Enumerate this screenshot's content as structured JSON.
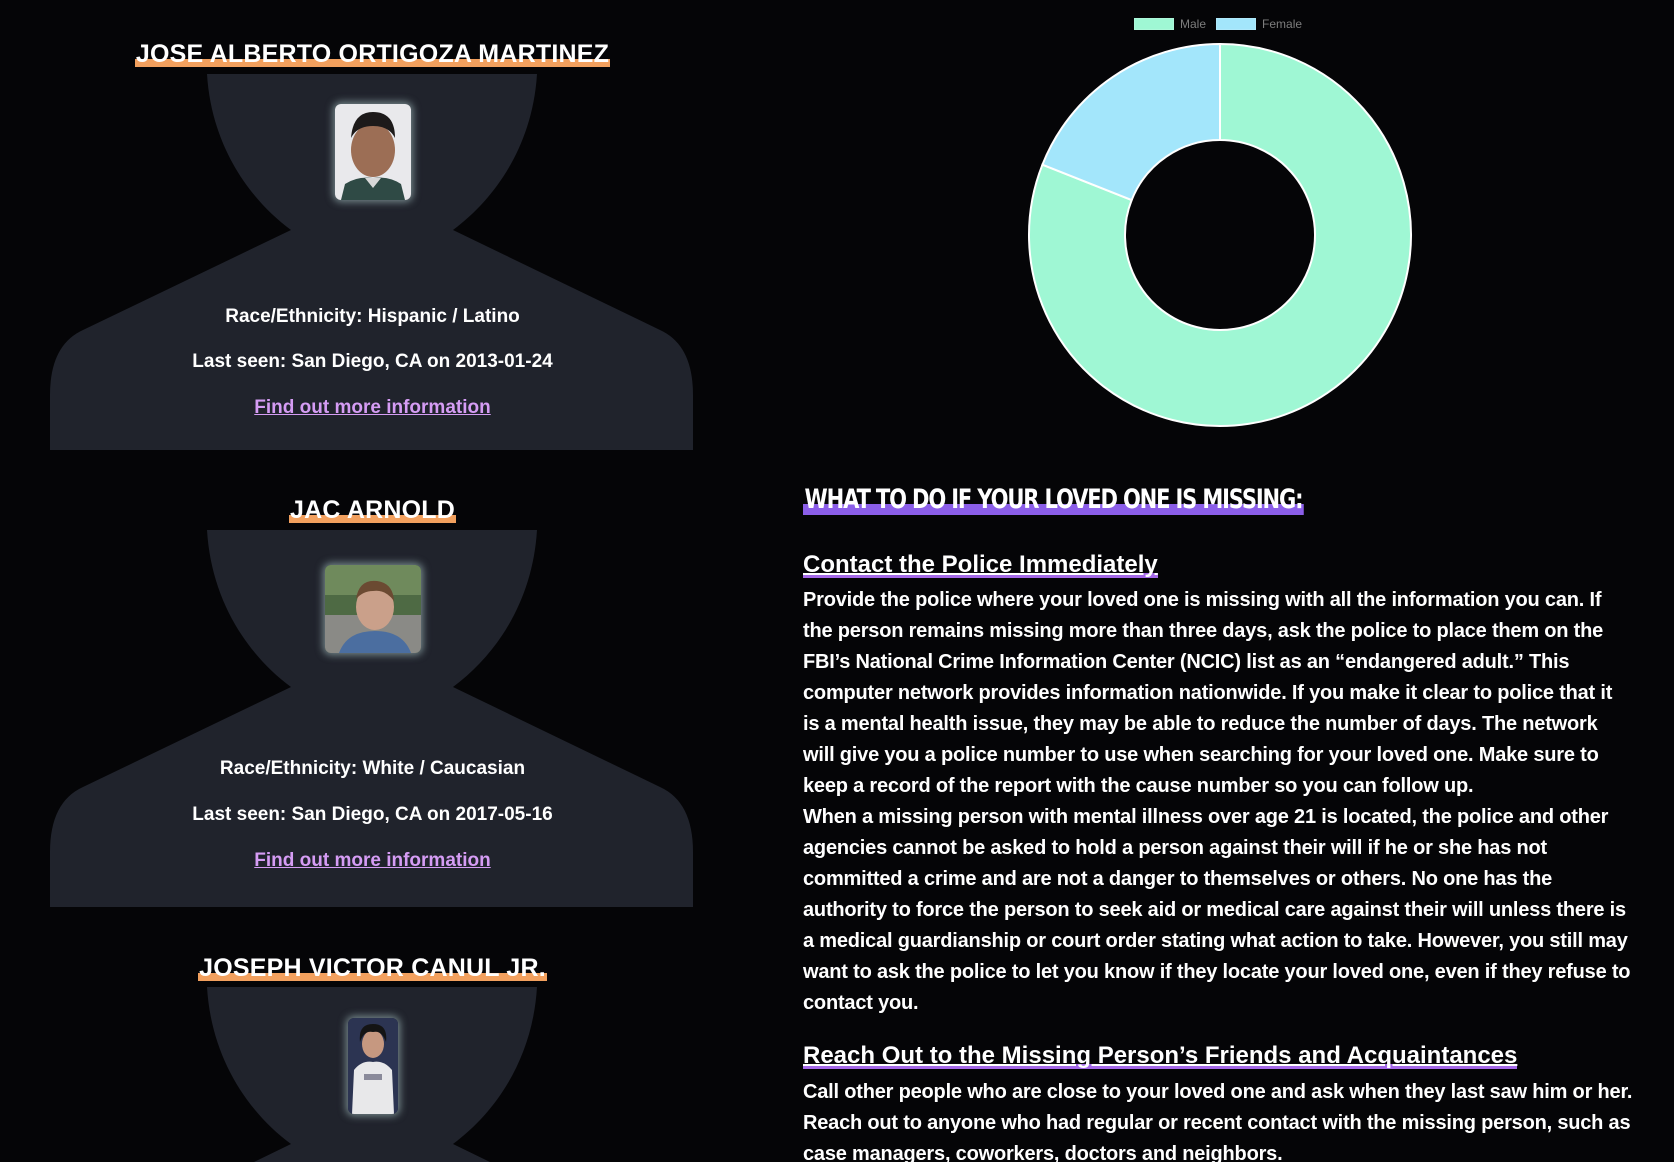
{
  "people": [
    {
      "name": "JOSE ALBERTO ORTIGOZA MARTINEZ",
      "race": "Race/Ethnicity: Hispanic / Latino",
      "last_seen": "Last seen: San Diego, CA on 2013-01-24",
      "link": "Find out more information"
    },
    {
      "name": "JAC ARNOLD",
      "race": "Race/Ethnicity: White / Caucasian",
      "last_seen": "Last seen: San Diego, CA on 2017-05-16",
      "link": "Find out more information"
    },
    {
      "name": "JOSEPH VICTOR CANUL JR."
    }
  ],
  "chart_data": {
    "type": "pie",
    "variant": "doughnut",
    "categories": [
      "Male",
      "Female"
    ],
    "values": [
      81,
      19
    ],
    "colors": [
      "#9ff7d4",
      "#a3e6fb"
    ],
    "legend_position": "top"
  },
  "guide": {
    "title": "WHAT TO DO IF YOUR LOVED ONE IS MISSING:",
    "sections": [
      {
        "heading": "Contact the Police Immediately",
        "paragraphs": [
          "Provide the police where your loved one is missing with all the information you can. If the person remains missing more than three days, ask the police to place them on the FBI’s National Crime Information Center (NCIC) list as an “endangered adult.” This computer network provides information nationwide. If you make it clear to police that it is a mental health issue, they may be able to reduce the number of days. The network will give you a police number to use when searching for your loved one. Make sure to keep a record of the report with the cause number so you can follow up.",
          "When a missing person with mental illness over age 21 is located, the police and other agencies cannot be asked to hold a person against their will if he or she has not committed a crime and are not a danger to themselves or others. No one has the authority to force the person to seek aid or medical care against their will unless there is a medical guardianship or court order stating what action to take.  However, you still may want to ask the police to let you know if they locate your loved one, even if they refuse to contact you."
        ]
      },
      {
        "heading": "Reach Out to the Missing Person’s Friends and Acquaintances",
        "paragraphs": [
          "Call other people who are close to your loved one and ask when they last saw him or her. Reach out to anyone who had regular or recent contact with the missing person, such as case managers, coworkers, doctors and neighbors."
        ]
      }
    ]
  },
  "colors": {
    "background": "#050507",
    "card": "#20232c",
    "name_highlight": "#f2a05e",
    "link": "#d59cf4",
    "heading_highlight": "#8b5ee8"
  }
}
